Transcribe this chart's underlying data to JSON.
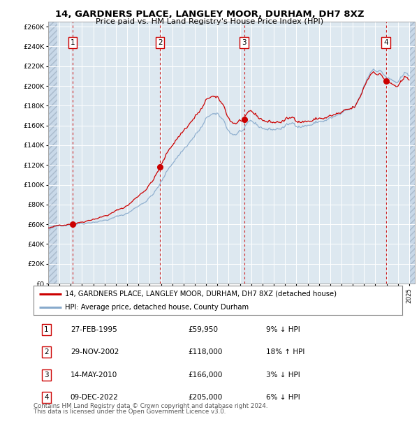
{
  "title": "14, GARDNERS PLACE, LANGLEY MOOR, DURHAM, DH7 8XZ",
  "subtitle": "Price paid vs. HM Land Registry's House Price Index (HPI)",
  "background_color": "#dde8f0",
  "plot_bg": "#dde8f0",
  "grid_color": "#ffffff",
  "hatch_bg": "#c8d8e8",
  "ylim": [
    0,
    265000
  ],
  "yticks": [
    0,
    20000,
    40000,
    60000,
    80000,
    100000,
    120000,
    140000,
    160000,
    180000,
    200000,
    220000,
    240000,
    260000
  ],
  "transactions": [
    {
      "num": 1,
      "date": "27-FEB-1995",
      "price": 59950,
      "price_str": "£59,950",
      "pct": "9%",
      "dir": "↓",
      "year": 1995.16
    },
    {
      "num": 2,
      "date": "29-NOV-2002",
      "price": 118000,
      "price_str": "£118,000",
      "pct": "18%",
      "dir": "↑",
      "year": 2002.91
    },
    {
      "num": 3,
      "date": "14-MAY-2010",
      "price": 166000,
      "price_str": "£166,000",
      "pct": "3%",
      "dir": "↓",
      "year": 2010.37
    },
    {
      "num": 4,
      "date": "09-DEC-2022",
      "price": 205000,
      "price_str": "£205,000",
      "pct": "6%",
      "dir": "↓",
      "year": 2022.94
    }
  ],
  "legend_house": "14, GARDNERS PLACE, LANGLEY MOOR, DURHAM, DH7 8XZ (detached house)",
  "legend_hpi": "HPI: Average price, detached house, County Durham",
  "footer1": "Contains HM Land Registry data © Crown copyright and database right 2024.",
  "footer2": "This data is licensed under the Open Government Licence v3.0.",
  "house_color": "#cc0000",
  "hpi_color": "#88aacc",
  "vline_color": "#cc0000",
  "box_color": "#cc0000",
  "xlim_start": 1993,
  "xlim_end": 2025.5
}
